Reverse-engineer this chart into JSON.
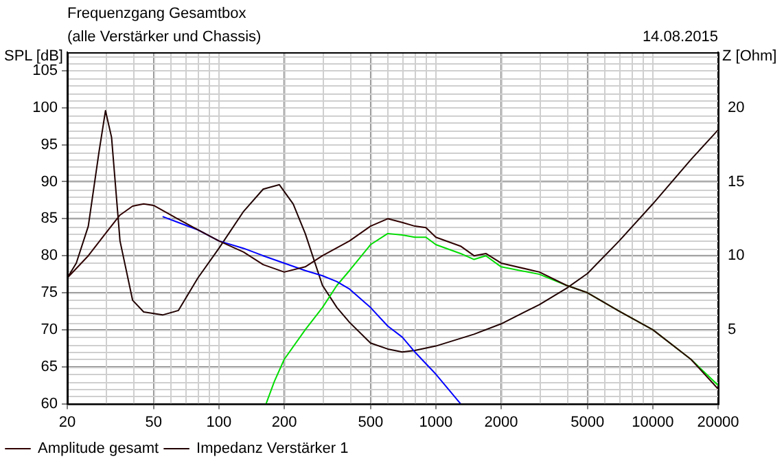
{
  "chart_data": {
    "type": "line",
    "title": "Frequenzgang Gesamtbox",
    "subtitle": "(alle Verstärker und Chassis)",
    "annotations": [
      "14.08.2015"
    ],
    "ylabel": "SPL [dB]",
    "y2label": "Z [Ohm]",
    "log": "x",
    "grid": true,
    "legend": "bottom",
    "marker": "none",
    "line_style": "solid",
    "xlim": [
      20,
      20000
    ],
    "xticks": [
      20,
      50,
      100,
      200,
      500,
      1000,
      2000,
      5000,
      10000,
      20000
    ],
    "ylim": [
      60,
      107.5
    ],
    "yticks": [
      60,
      65,
      70,
      75,
      80,
      85,
      90,
      95,
      100,
      105
    ],
    "y2lim": [
      0,
      23.75
    ],
    "y2ticks": [
      5,
      10,
      15,
      20
    ],
    "series": [
      {
        "name": "Amplitude gesamt",
        "color": "#300000",
        "x": [
          20,
          25,
          30,
          35,
          40,
          45,
          50,
          60,
          80,
          100,
          130,
          160,
          200,
          250,
          300,
          400,
          500,
          600,
          700,
          800,
          900,
          1000,
          1300,
          1500,
          1700,
          2000,
          3000,
          4000,
          5000,
          7000,
          10000,
          15000,
          20000
        ],
        "values": [
          77,
          80,
          83,
          85.5,
          86.7,
          87,
          86.8,
          85.5,
          83.5,
          82,
          80.5,
          78.8,
          77.8,
          78.5,
          80,
          82,
          84,
          85,
          84.5,
          84,
          83.8,
          82.5,
          81.3,
          80,
          80.3,
          79,
          77.8,
          76,
          75,
          72.5,
          70,
          66,
          62
        ]
      },
      {
        "color": "#0000ff",
        "x": [
          55,
          80,
          100,
          130,
          160,
          200,
          250,
          300,
          350,
          400,
          500,
          600,
          700,
          800,
          1000,
          1300
        ],
        "values": [
          85.3,
          83.5,
          82,
          81,
          80,
          79,
          78,
          77.3,
          76.5,
          75.5,
          73,
          70.5,
          69,
          67,
          64,
          60
        ]
      },
      {
        "color": "#00dd00",
        "x": [
          165,
          180,
          200,
          250,
          300,
          350,
          400,
          500,
          600,
          700,
          800,
          900,
          1000,
          1300,
          1500,
          1700,
          2000,
          3000,
          4000,
          5000,
          7000,
          10000,
          15000,
          20000
        ],
        "values": [
          60,
          63,
          66,
          70,
          73,
          76,
          78,
          81.5,
          83,
          82.8,
          82.5,
          82.5,
          81.5,
          80.3,
          79.5,
          80,
          78.5,
          77.5,
          76,
          75,
          72.5,
          70,
          66,
          62.5
        ]
      },
      {
        "name": "Impedanz Verstärker 1",
        "color": "#200000",
        "axis": "y2",
        "x": [
          20,
          22,
          25,
          28,
          30,
          32,
          35,
          40,
          45,
          55,
          65,
          80,
          100,
          130,
          160,
          190,
          220,
          250,
          300,
          350,
          400,
          500,
          600,
          700,
          800,
          1000,
          1500,
          2000,
          3000,
          4000,
          5000,
          7000,
          10000,
          15000,
          20000
        ],
        "values": [
          8.5,
          9.5,
          12,
          17,
          19.8,
          18,
          11,
          7,
          6.2,
          6,
          6.3,
          8.5,
          10.5,
          13,
          14.5,
          14.8,
          13.5,
          11.5,
          8,
          6.5,
          5.5,
          4.1,
          3.7,
          3.5,
          3.6,
          3.9,
          4.7,
          5.4,
          6.7,
          7.8,
          8.8,
          11,
          13.5,
          16.5,
          18.5
        ]
      }
    ]
  }
}
